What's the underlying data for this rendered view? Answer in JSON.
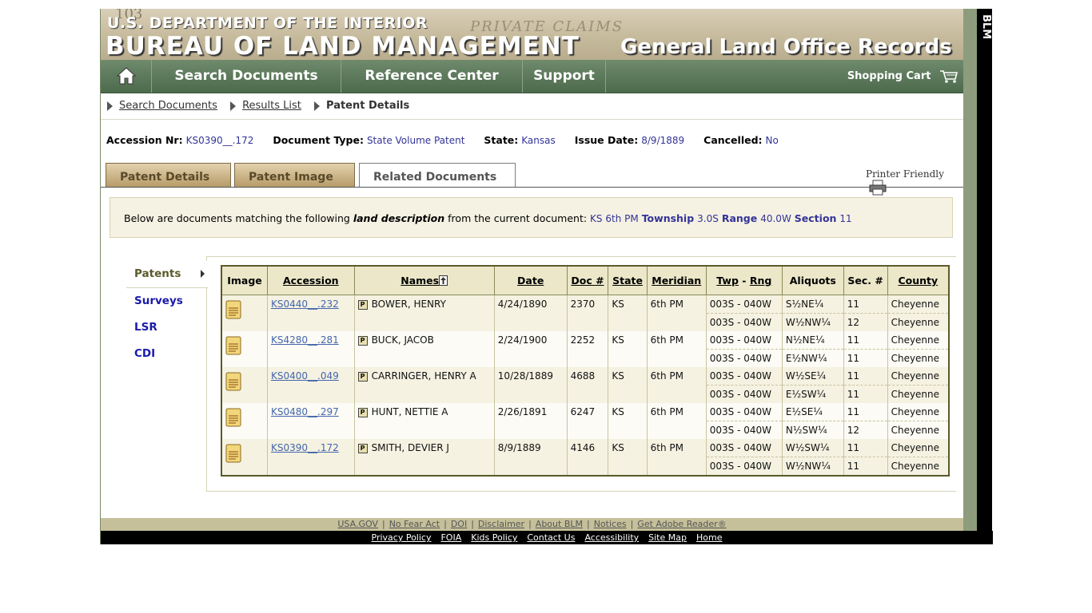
{
  "banner": {
    "stamp": "103",
    "watermark": "PRIVATE CLAIMS",
    "line1": "U.S. DEPARTMENT OF THE INTERIOR",
    "line2": "BUREAU OF LAND MANAGEMENT",
    "line3": "General Land Office Records",
    "side_label": "BLM"
  },
  "nav": {
    "home_icon": "house-icon",
    "search": "Search Documents",
    "reference": "Reference Center",
    "support": "Support",
    "cart": "Shopping Cart"
  },
  "breadcrumb": {
    "item1": "Search Documents",
    "item2": "Results List",
    "current": "Patent Details"
  },
  "docinfo": {
    "accession_label": "Accession Nr:",
    "accession": "KS0390__.172",
    "type_label": "Document Type:",
    "type": "State Volume Patent",
    "state_label": "State:",
    "state": "Kansas",
    "issue_label": "Issue Date:",
    "issue": "8/9/1889",
    "cancelled_label": "Cancelled:",
    "cancelled": "No"
  },
  "tabs": {
    "details": "Patent Details",
    "image": "Patent Image",
    "related": "Related Documents",
    "printer": "Printer Friendly"
  },
  "description": {
    "prefix": "Below are documents matching the following",
    "emph": "land description",
    "middle": "from the current document:",
    "meridian": "KS 6th PM",
    "township_label": "Township",
    "township": "3.0S",
    "range_label": "Range",
    "range": "40.0W",
    "section_label": "Section",
    "section": "11"
  },
  "sidenav": {
    "patents": "Patents",
    "surveys": "Surveys",
    "lsr": "LSR",
    "cdi": "CDI"
  },
  "table": {
    "headers": {
      "image": "Image",
      "accession": "Accession",
      "names": "Names",
      "date": "Date",
      "doc": "Doc #",
      "state": "State",
      "meridian": "Meridian",
      "twp": "Twp",
      "dash": "-",
      "rng": "Rng",
      "aliquots": "Aliquots",
      "sec": "Sec. #",
      "county": "County"
    },
    "rows": [
      {
        "accession": "KS0440__.232",
        "name": "BOWER, HENRY",
        "date": "4/24/1890",
        "doc": "2370",
        "state": "KS",
        "meridian": "6th PM",
        "lines": [
          {
            "twp": "003S - 040W",
            "aliquot": "S½NE¼",
            "sec": "11",
            "county": "Cheyenne"
          },
          {
            "twp": "003S - 040W",
            "aliquot": "W½NW¼",
            "sec": "12",
            "county": "Cheyenne"
          }
        ]
      },
      {
        "accession": "KS4280__.281",
        "name": "BUCK, JACOB",
        "date": "2/24/1900",
        "doc": "2252",
        "state": "KS",
        "meridian": "6th PM",
        "lines": [
          {
            "twp": "003S - 040W",
            "aliquot": "N½NE¼",
            "sec": "11",
            "county": "Cheyenne"
          },
          {
            "twp": "003S - 040W",
            "aliquot": "E½NW¼",
            "sec": "11",
            "county": "Cheyenne"
          }
        ]
      },
      {
        "accession": "KS0400__.049",
        "name": "CARRINGER, HENRY A",
        "date": "10/28/1889",
        "doc": "4688",
        "state": "KS",
        "meridian": "6th PM",
        "lines": [
          {
            "twp": "003S - 040W",
            "aliquot": "W½SE¼",
            "sec": "11",
            "county": "Cheyenne"
          },
          {
            "twp": "003S - 040W",
            "aliquot": "E½SW¼",
            "sec": "11",
            "county": "Cheyenne"
          }
        ]
      },
      {
        "accession": "KS0480__.297",
        "name": "HUNT, NETTIE A",
        "date": "2/26/1891",
        "doc": "6247",
        "state": "KS",
        "meridian": "6th PM",
        "lines": [
          {
            "twp": "003S - 040W",
            "aliquot": "E½SE¼",
            "sec": "11",
            "county": "Cheyenne"
          },
          {
            "twp": "003S - 040W",
            "aliquot": "N½SW¼",
            "sec": "12",
            "county": "Cheyenne"
          }
        ]
      },
      {
        "accession": "KS0390__.172",
        "name": "SMITH, DEVIER J",
        "date": "8/9/1889",
        "doc": "4146",
        "state": "KS",
        "meridian": "6th PM",
        "lines": [
          {
            "twp": "003S - 040W",
            "aliquot": "W½SW¼",
            "sec": "11",
            "county": "Cheyenne"
          },
          {
            "twp": "003S - 040W",
            "aliquot": "W½NW¼",
            "sec": "11",
            "county": "Cheyenne"
          }
        ]
      }
    ],
    "patent_badge": "P"
  },
  "footer": {
    "top": [
      "USA.GOV",
      "No Fear Act",
      "DOI",
      "Disclaimer",
      "About BLM",
      "Notices",
      "Get Adobe Reader®"
    ],
    "bottom": [
      "Privacy Policy",
      "FOIA",
      "Kids Policy",
      "Contact Us",
      "Accessibility",
      "Site Map",
      "Home"
    ]
  }
}
